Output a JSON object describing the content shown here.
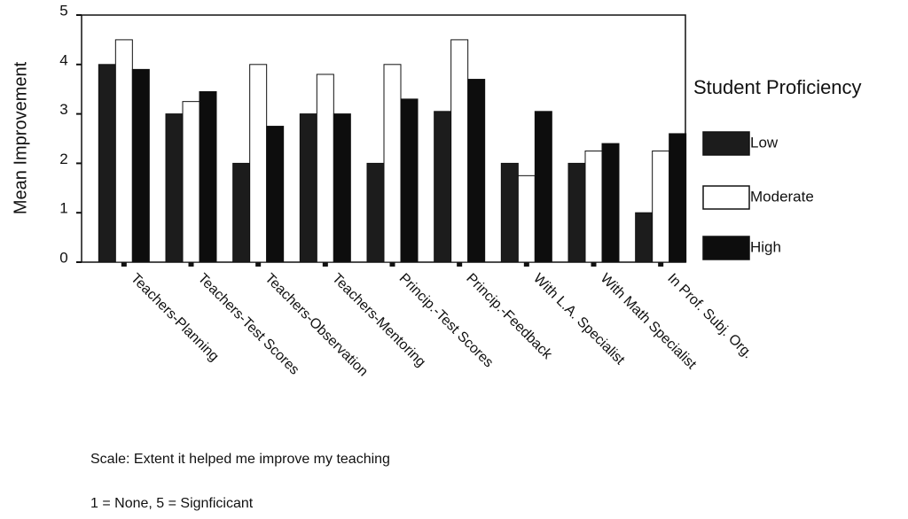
{
  "chart_data": {
    "type": "bar",
    "y_label": "Mean Improvement",
    "categories": [
      "Teachers-Planning",
      "Teachers-Test Scores",
      "Teachers-Observation",
      "Teachers-Mentoring",
      "Princip.-Test Scores",
      "Princip.-Feedback",
      "With L.A. Specialist",
      "With Math Specialist",
      "In Prof. Subj. Org."
    ],
    "series": [
      {
        "name": "Low",
        "color": "#1c1c1c",
        "values": [
          4.0,
          3.0,
          2.0,
          3.0,
          2.0,
          3.05,
          2.0,
          2.0,
          1.0
        ]
      },
      {
        "name": "Moderate",
        "color": "#ffffff",
        "values": [
          4.5,
          3.25,
          4.0,
          3.8,
          4.0,
          4.5,
          1.75,
          2.25,
          2.25
        ]
      },
      {
        "name": "High",
        "color": "#0d0d0d",
        "values": [
          3.9,
          3.45,
          2.75,
          3.0,
          3.3,
          3.7,
          3.05,
          2.4,
          2.6
        ]
      }
    ],
    "legend_title": "Student Proficiency",
    "legend_position": "right",
    "ylim": [
      0,
      5
    ],
    "yticks": [
      0,
      1,
      2,
      3,
      4,
      5
    ],
    "notes": [
      "Scale: Extent it helped me improve my teaching",
      "1 =  None, 5 = Signficicant"
    ]
  }
}
